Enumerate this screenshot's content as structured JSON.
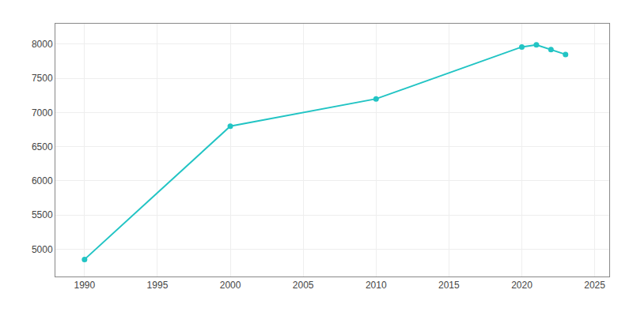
{
  "chart_data": {
    "type": "line",
    "x": [
      1990,
      2000,
      2010,
      2020,
      2021,
      2022,
      2023
    ],
    "values": [
      4850,
      6800,
      7200,
      7960,
      7990,
      7920,
      7850
    ],
    "color": "#22c4c4",
    "marker": "circle",
    "line_style": "solid",
    "xlim": [
      1988,
      2026
    ],
    "xticks": [
      1990,
      1995,
      2000,
      2005,
      2010,
      2015,
      2020,
      2025
    ],
    "ylim": [
      4600,
      8300
    ],
    "yticks": [
      5000,
      5500,
      6000,
      6500,
      7000,
      7500,
      8000
    ],
    "grid": true
  }
}
